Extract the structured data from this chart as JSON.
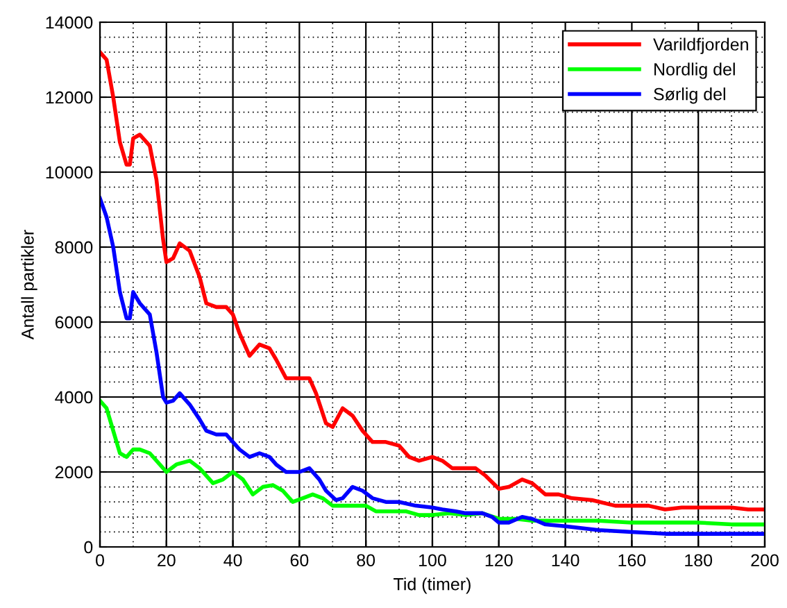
{
  "chart_data": {
    "type": "line",
    "xlabel": "Tid (timer)",
    "ylabel": "Antall partikler",
    "xlim": [
      0,
      200
    ],
    "ylim": [
      0,
      14000
    ],
    "xticks": [
      0,
      20,
      40,
      60,
      80,
      100,
      120,
      140,
      160,
      180,
      200
    ],
    "yticks": [
      0,
      2000,
      4000,
      6000,
      8000,
      10000,
      12000,
      14000
    ],
    "grid": true,
    "legend": "top right",
    "line_style": "solid",
    "series": [
      {
        "name": "Varildfjorden",
        "color": "#ff0000",
        "x": [
          0,
          2,
          4,
          6,
          8,
          9,
          10,
          12,
          15,
          17,
          19,
          20,
          22,
          24,
          27,
          30,
          32,
          35,
          38,
          40,
          42,
          45,
          48,
          51,
          53,
          56,
          60,
          63,
          65,
          68,
          70,
          73,
          76,
          79,
          82,
          86,
          90,
          93,
          96,
          100,
          103,
          106,
          110,
          113,
          116,
          120,
          123,
          127,
          130,
          134,
          138,
          142,
          148,
          155,
          160,
          165,
          170,
          175,
          180,
          185,
          190,
          195,
          200
        ],
        "values": [
          13200,
          13000,
          12000,
          10800,
          10200,
          10200,
          10900,
          11000,
          10700,
          9800,
          8200,
          7600,
          7700,
          8100,
          7900,
          7200,
          6500,
          6400,
          6400,
          6200,
          5700,
          5100,
          5400,
          5300,
          5000,
          4500,
          4500,
          4500,
          4100,
          3300,
          3200,
          3700,
          3500,
          3100,
          2800,
          2800,
          2700,
          2400,
          2300,
          2400,
          2300,
          2100,
          2100,
          2100,
          1900,
          1550,
          1600,
          1800,
          1700,
          1400,
          1400,
          1300,
          1250,
          1100,
          1100,
          1100,
          1000,
          1050,
          1050,
          1050,
          1050,
          1000,
          1000
        ]
      },
      {
        "name": "Nordlig del",
        "color": "#00ff00",
        "x": [
          0,
          2,
          4,
          6,
          8,
          10,
          12,
          15,
          18,
          20,
          23,
          27,
          30,
          34,
          37,
          40,
          43,
          46,
          49,
          52,
          55,
          58,
          61,
          64,
          67,
          70,
          73,
          76,
          80,
          83,
          88,
          92,
          96,
          100,
          105,
          110,
          115,
          120,
          125,
          130,
          140,
          150,
          160,
          170,
          180,
          190,
          200
        ],
        "values": [
          3900,
          3700,
          3100,
          2500,
          2400,
          2600,
          2600,
          2500,
          2200,
          2000,
          2200,
          2300,
          2100,
          1700,
          1800,
          2000,
          1800,
          1400,
          1600,
          1650,
          1500,
          1200,
          1300,
          1400,
          1300,
          1100,
          1100,
          1100,
          1100,
          950,
          950,
          950,
          850,
          850,
          900,
          850,
          900,
          750,
          750,
          700,
          700,
          700,
          650,
          650,
          650,
          600,
          600
        ]
      },
      {
        "name": "Sørlig del",
        "color": "#0000ff",
        "x": [
          0,
          2,
          4,
          6,
          8,
          9,
          10,
          12,
          15,
          17,
          19,
          20,
          22,
          24,
          27,
          30,
          32,
          35,
          38,
          40,
          42,
          45,
          48,
          51,
          53,
          56,
          60,
          63,
          66,
          68,
          71,
          73,
          76,
          79,
          82,
          86,
          90,
          95,
          100,
          103,
          107,
          110,
          115,
          118,
          120,
          123,
          127,
          130,
          134,
          140,
          150,
          160,
          170,
          180,
          190,
          200
        ],
        "values": [
          9300,
          8800,
          8000,
          6800,
          6100,
          6100,
          6800,
          6500,
          6200,
          5200,
          4000,
          3850,
          3900,
          4100,
          3800,
          3400,
          3100,
          3000,
          3000,
          2800,
          2600,
          2400,
          2500,
          2400,
          2200,
          2000,
          2000,
          2100,
          1800,
          1500,
          1250,
          1300,
          1600,
          1500,
          1300,
          1200,
          1200,
          1100,
          1050,
          1000,
          950,
          900,
          900,
          800,
          650,
          650,
          800,
          750,
          600,
          550,
          450,
          400,
          350,
          350,
          350,
          350
        ]
      }
    ]
  }
}
